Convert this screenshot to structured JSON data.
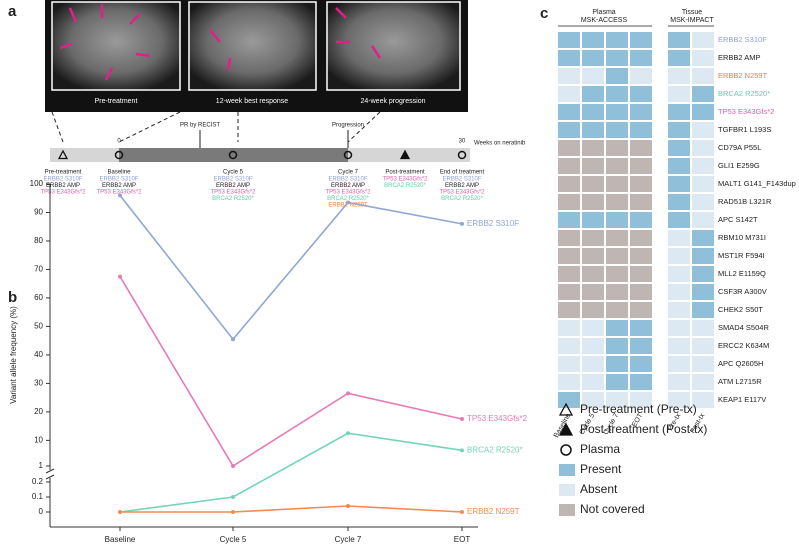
{
  "panel_a": {
    "label": "a",
    "images": [
      "Pre-treatment",
      "12-week best response",
      "24-week progression"
    ],
    "events": [
      "PR by RECIST",
      "Progression"
    ],
    "axis": {
      "start": "0",
      "end": "30",
      "label": "Weeks on neratinib"
    },
    "timepoints": [
      {
        "label": "Pre-treatment",
        "variants": [
          {
            "name": "ERBB2 S310F",
            "color": "#8f9fd6"
          },
          {
            "name": "ERBB2 AMP",
            "color": "#222222"
          },
          {
            "name": "TP53 E343Gfs*2",
            "color": "#e35fb0"
          }
        ]
      },
      {
        "label": "Baseline",
        "variants": [
          {
            "name": "ERBB2 S310F",
            "color": "#8f9fd6"
          },
          {
            "name": "ERBB2 AMP",
            "color": "#222222"
          },
          {
            "name": "TP53 E343Gfs*2",
            "color": "#e35fb0"
          }
        ]
      },
      {
        "label": "Cycle 5",
        "variants": [
          {
            "name": "ERBB2 S310F",
            "color": "#8f9fd6"
          },
          {
            "name": "ERBB2 AMP",
            "color": "#222222"
          },
          {
            "name": "TP53 E343Gfs*2",
            "color": "#e35fb0"
          },
          {
            "name": "BRCA2 R2520*",
            "color": "#5fcfa8"
          }
        ]
      },
      {
        "label": "Cycle 7",
        "variants": [
          {
            "name": "ERBB2 S310F",
            "color": "#8f9fd6"
          },
          {
            "name": "ERBB2 AMP",
            "color": "#222222"
          },
          {
            "name": "TP53 E343Gfs*2",
            "color": "#e35fb0"
          },
          {
            "name": "BRCA2 R2520*",
            "color": "#5fcfa8"
          },
          {
            "name": "ERBB2 N259T",
            "color": "#f07f3c"
          }
        ]
      },
      {
        "label": "Post-treatment",
        "variants": [
          {
            "name": "TP53 E343Gfs*2",
            "color": "#e35fb0"
          },
          {
            "name": "BRCA2 R2520*",
            "color": "#5fcfa8"
          }
        ]
      },
      {
        "label": "End of treatment",
        "variants": [
          {
            "name": "ERBB2 S310F",
            "color": "#8f9fd6"
          },
          {
            "name": "ERBB2 AMP",
            "color": "#222222"
          },
          {
            "name": "TP53 E343Gfs*2",
            "color": "#e35fb0"
          },
          {
            "name": "BRCA2 R2520*",
            "color": "#5fcfa8"
          }
        ]
      }
    ]
  },
  "chart_data": {
    "type": "line",
    "label": "b",
    "y_label": "Variant allele frequency (%)",
    "categories": [
      "Baseline",
      "Cycle 5",
      "Cycle 7",
      "EOT"
    ],
    "y_segments": [
      {
        "ylim": [
          0,
          0.2
        ],
        "yticks": [
          0,
          0.1,
          0.2
        ]
      },
      {
        "ylim": [
          1,
          100
        ],
        "yticks": [
          1,
          10,
          20,
          30,
          40,
          50,
          60,
          70,
          80,
          90,
          100
        ]
      }
    ],
    "series": [
      {
        "name": "ERBB2 S310F",
        "color": "#8fa6d6",
        "values": [
          96,
          45.5,
          93.5,
          86
        ]
      },
      {
        "name": "TP53 E343Gfs*2",
        "color": "#e879b8",
        "values": [
          67.5,
          1,
          26.5,
          17.5
        ]
      },
      {
        "name": "BRCA2 R2520*",
        "color": "#72d6b3",
        "values": [
          0,
          0.1,
          12.5,
          6.5
        ]
      },
      {
        "name": "ERBB2 N259T",
        "color": "#f28c52",
        "values": [
          0,
          0,
          0.04,
          0
        ]
      }
    ]
  },
  "panel_c": {
    "label": "c",
    "groups": [
      {
        "title": "Plasma",
        "subtitle": "MSK-ACCESS"
      },
      {
        "title": "Tissue",
        "subtitle": "MSK-IMPACT"
      }
    ],
    "columns": [
      "Baseline",
      "Cycle 5",
      "Cycle 7",
      "EOT",
      "Pre-tx",
      "Post-tx"
    ],
    "rows": [
      {
        "label": "ERBB2 S310F",
        "color": "#8f9fd6",
        "cells": [
          "Present",
          "Present",
          "Present",
          "Present",
          "Present",
          "Absent"
        ]
      },
      {
        "label": "ERBB2 AMP",
        "color": "#222222",
        "cells": [
          "Present",
          "Present",
          "Present",
          "Present",
          "Present",
          "Absent"
        ]
      },
      {
        "label": "ERBB2 N259T",
        "color": "#f07f3c",
        "cells": [
          "Absent",
          "Absent",
          "Present",
          "Absent",
          "Absent",
          "Absent"
        ]
      },
      {
        "label": "BRCA2 R2520*",
        "color": "#5fcfa8",
        "cells": [
          "Absent",
          "Present",
          "Present",
          "Present",
          "Absent",
          "Present"
        ]
      },
      {
        "label": "TP53 E343Gfs*2",
        "color": "#e35fb0",
        "cells": [
          "Present",
          "Present",
          "Present",
          "Present",
          "Present",
          "Present"
        ]
      },
      {
        "label": "TGFBR1 L193S",
        "color": "#222222",
        "cells": [
          "Present",
          "Present",
          "Present",
          "Present",
          "Present",
          "Absent"
        ]
      },
      {
        "label": "CD79A P55L",
        "color": "#222222",
        "cells": [
          "Not covered",
          "Not covered",
          "Not covered",
          "Not covered",
          "Present",
          "Absent"
        ]
      },
      {
        "label": "GLI1 E259G",
        "color": "#222222",
        "cells": [
          "Not covered",
          "Not covered",
          "Not covered",
          "Not covered",
          "Present",
          "Absent"
        ]
      },
      {
        "label": "MALT1 G141_F143dup",
        "color": "#222222",
        "cells": [
          "Not covered",
          "Not covered",
          "Not covered",
          "Not covered",
          "Present",
          "Absent"
        ]
      },
      {
        "label": "RAD51B L321R",
        "color": "#222222",
        "cells": [
          "Not covered",
          "Not covered",
          "Not covered",
          "Not covered",
          "Present",
          "Absent"
        ]
      },
      {
        "label": "APC S142T",
        "color": "#222222",
        "cells": [
          "Present",
          "Present",
          "Present",
          "Present",
          "Present",
          "Absent"
        ]
      },
      {
        "label": "RBM10 M731I",
        "color": "#222222",
        "cells": [
          "Not covered",
          "Not covered",
          "Not covered",
          "Not covered",
          "Absent",
          "Present"
        ]
      },
      {
        "label": "MST1R F594I",
        "color": "#222222",
        "cells": [
          "Not covered",
          "Not covered",
          "Not covered",
          "Not covered",
          "Absent",
          "Present"
        ]
      },
      {
        "label": "MLL2 E1159Q",
        "color": "#222222",
        "cells": [
          "Not covered",
          "Not covered",
          "Not covered",
          "Not covered",
          "Absent",
          "Present"
        ]
      },
      {
        "label": "CSF3R A300V",
        "color": "#222222",
        "cells": [
          "Not covered",
          "Not covered",
          "Not covered",
          "Not covered",
          "Absent",
          "Present"
        ]
      },
      {
        "label": "CHEK2 S50T",
        "color": "#222222",
        "cells": [
          "Not covered",
          "Not covered",
          "Not covered",
          "Not covered",
          "Absent",
          "Present"
        ]
      },
      {
        "label": "SMAD4 S504R",
        "color": "#222222",
        "cells": [
          "Absent",
          "Absent",
          "Present",
          "Present",
          "Absent",
          "Absent"
        ]
      },
      {
        "label": "ERCC2 K634M",
        "color": "#222222",
        "cells": [
          "Absent",
          "Absent",
          "Present",
          "Present",
          "Absent",
          "Absent"
        ]
      },
      {
        "label": "APC Q2605H",
        "color": "#222222",
        "cells": [
          "Absent",
          "Absent",
          "Present",
          "Present",
          "Absent",
          "Absent"
        ]
      },
      {
        "label": "ATM L2715R",
        "color": "#222222",
        "cells": [
          "Absent",
          "Absent",
          "Present",
          "Present",
          "Absent",
          "Absent"
        ]
      },
      {
        "label": "KEAP1 E117V",
        "color": "#222222",
        "cells": [
          "Present",
          "Absent",
          "Absent",
          "Absent",
          "Absent",
          "Absent"
        ]
      }
    ],
    "legend": {
      "symbols": [
        "Pre-treatment (Pre-tx)",
        "Post-treatment (Post-tx)",
        "Plasma"
      ],
      "fills": [
        {
          "name": "Present",
          "color": "#8fbfd9"
        },
        {
          "name": "Absent",
          "color": "#dce9f2"
        },
        {
          "name": "Not covered",
          "color": "#bfb6b4"
        }
      ]
    }
  }
}
